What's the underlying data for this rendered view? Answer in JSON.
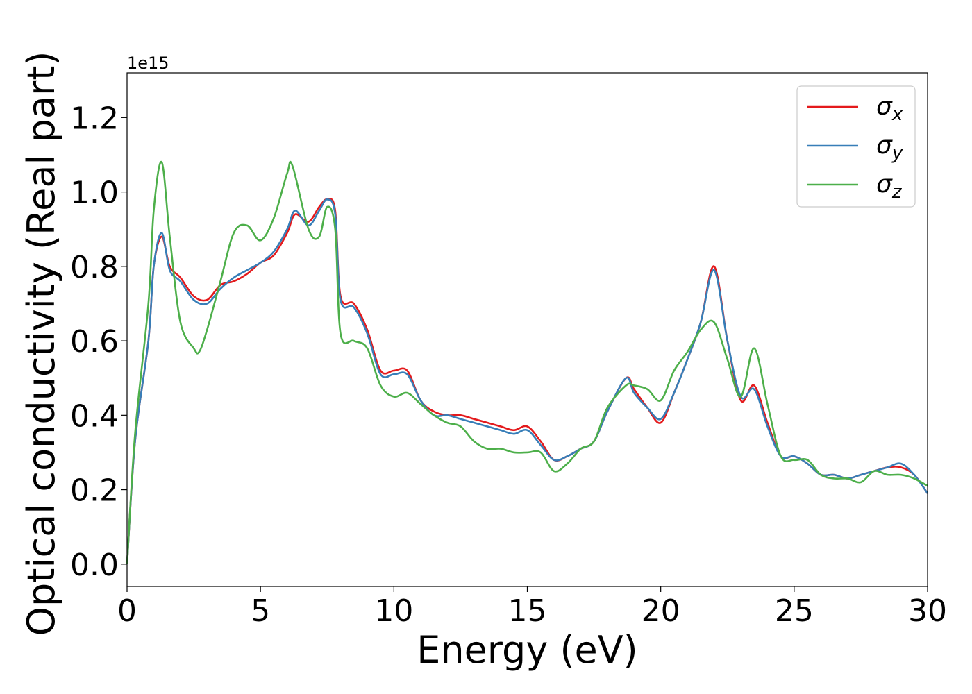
{
  "chart_data": {
    "type": "line",
    "title": "",
    "xlabel": "Energy (eV)",
    "ylabel": "Optical conductivity (Real part)",
    "y_offset_label": "1e15",
    "xlim": [
      0,
      30
    ],
    "ylim": [
      -0.06,
      1.32
    ],
    "x_ticks": [
      0,
      5,
      10,
      15,
      20,
      25,
      30
    ],
    "x_tick_labels": [
      "0",
      "5",
      "10",
      "15",
      "20",
      "25",
      "30"
    ],
    "y_ticks": [
      0.0,
      0.2,
      0.4,
      0.6,
      0.8,
      1.0,
      1.2
    ],
    "y_tick_labels": [
      "0.0",
      "0.2",
      "0.4",
      "0.6",
      "0.8",
      "1.0",
      "1.2"
    ],
    "grid": false,
    "legend_position": "top-right",
    "series": [
      {
        "name": "σx",
        "name_base": "σ",
        "name_sub": "x",
        "color": "#e41a1c",
        "points": [
          [
            0,
            0
          ],
          [
            0.3,
            0.33
          ],
          [
            0.8,
            0.6
          ],
          [
            1.0,
            0.8
          ],
          [
            1.3,
            0.88
          ],
          [
            1.6,
            0.8
          ],
          [
            2.0,
            0.77
          ],
          [
            2.5,
            0.72
          ],
          [
            3.0,
            0.71
          ],
          [
            3.5,
            0.75
          ],
          [
            4.0,
            0.76
          ],
          [
            4.5,
            0.78
          ],
          [
            5.0,
            0.81
          ],
          [
            5.5,
            0.83
          ],
          [
            6.0,
            0.89
          ],
          [
            6.3,
            0.94
          ],
          [
            6.8,
            0.92
          ],
          [
            7.2,
            0.96
          ],
          [
            7.5,
            0.98
          ],
          [
            7.8,
            0.95
          ],
          [
            8.0,
            0.72
          ],
          [
            8.5,
            0.7
          ],
          [
            9.0,
            0.63
          ],
          [
            9.5,
            0.52
          ],
          [
            10.0,
            0.52
          ],
          [
            10.5,
            0.52
          ],
          [
            11.0,
            0.44
          ],
          [
            11.5,
            0.41
          ],
          [
            12.0,
            0.4
          ],
          [
            12.5,
            0.4
          ],
          [
            13.0,
            0.39
          ],
          [
            13.5,
            0.38
          ],
          [
            14.0,
            0.37
          ],
          [
            14.5,
            0.36
          ],
          [
            15.0,
            0.37
          ],
          [
            15.5,
            0.33
          ],
          [
            16.0,
            0.28
          ],
          [
            16.5,
            0.29
          ],
          [
            17.0,
            0.31
          ],
          [
            17.5,
            0.33
          ],
          [
            18.0,
            0.41
          ],
          [
            18.7,
            0.5
          ],
          [
            19.0,
            0.47
          ],
          [
            19.5,
            0.42
          ],
          [
            20.0,
            0.38
          ],
          [
            20.5,
            0.46
          ],
          [
            21.0,
            0.55
          ],
          [
            21.5,
            0.65
          ],
          [
            22.0,
            0.8
          ],
          [
            22.5,
            0.6
          ],
          [
            23.0,
            0.44
          ],
          [
            23.5,
            0.48
          ],
          [
            24.0,
            0.38
          ],
          [
            24.5,
            0.29
          ],
          [
            25.0,
            0.29
          ],
          [
            25.5,
            0.27
          ],
          [
            26.0,
            0.24
          ],
          [
            26.5,
            0.24
          ],
          [
            27.0,
            0.23
          ],
          [
            27.5,
            0.24
          ],
          [
            28.0,
            0.25
          ],
          [
            28.5,
            0.26
          ],
          [
            29.0,
            0.26
          ],
          [
            29.5,
            0.24
          ],
          [
            30.0,
            0.19
          ]
        ]
      },
      {
        "name": "σy",
        "name_base": "σ",
        "name_sub": "y",
        "color": "#377eb8",
        "points": [
          [
            0,
            0
          ],
          [
            0.3,
            0.33
          ],
          [
            0.8,
            0.6
          ],
          [
            1.0,
            0.8
          ],
          [
            1.3,
            0.89
          ],
          [
            1.6,
            0.79
          ],
          [
            2.0,
            0.76
          ],
          [
            2.5,
            0.71
          ],
          [
            3.0,
            0.7
          ],
          [
            3.5,
            0.74
          ],
          [
            4.0,
            0.77
          ],
          [
            4.5,
            0.79
          ],
          [
            5.0,
            0.81
          ],
          [
            5.5,
            0.84
          ],
          [
            6.0,
            0.9
          ],
          [
            6.3,
            0.95
          ],
          [
            6.8,
            0.91
          ],
          [
            7.2,
            0.95
          ],
          [
            7.5,
            0.98
          ],
          [
            7.8,
            0.94
          ],
          [
            8.0,
            0.71
          ],
          [
            8.5,
            0.69
          ],
          [
            9.0,
            0.62
          ],
          [
            9.5,
            0.51
          ],
          [
            10.0,
            0.51
          ],
          [
            10.5,
            0.51
          ],
          [
            11.0,
            0.44
          ],
          [
            11.5,
            0.4
          ],
          [
            12.0,
            0.4
          ],
          [
            12.5,
            0.39
          ],
          [
            13.0,
            0.38
          ],
          [
            13.5,
            0.37
          ],
          [
            14.0,
            0.36
          ],
          [
            14.5,
            0.35
          ],
          [
            15.0,
            0.36
          ],
          [
            15.5,
            0.32
          ],
          [
            16.0,
            0.28
          ],
          [
            16.5,
            0.29
          ],
          [
            17.0,
            0.31
          ],
          [
            17.5,
            0.33
          ],
          [
            18.0,
            0.41
          ],
          [
            18.7,
            0.5
          ],
          [
            19.0,
            0.46
          ],
          [
            19.5,
            0.42
          ],
          [
            20.0,
            0.39
          ],
          [
            20.5,
            0.46
          ],
          [
            21.0,
            0.55
          ],
          [
            21.5,
            0.65
          ],
          [
            22.0,
            0.79
          ],
          [
            22.5,
            0.6
          ],
          [
            23.0,
            0.45
          ],
          [
            23.5,
            0.47
          ],
          [
            24.0,
            0.37
          ],
          [
            24.5,
            0.29
          ],
          [
            25.0,
            0.29
          ],
          [
            25.5,
            0.27
          ],
          [
            26.0,
            0.24
          ],
          [
            26.5,
            0.24
          ],
          [
            27.0,
            0.23
          ],
          [
            27.5,
            0.24
          ],
          [
            28.0,
            0.25
          ],
          [
            28.5,
            0.26
          ],
          [
            29.0,
            0.27
          ],
          [
            29.5,
            0.24
          ],
          [
            30.0,
            0.19
          ]
        ]
      },
      {
        "name": "σz",
        "name_base": "σ",
        "name_sub": "z",
        "color": "#4daf4a",
        "points": [
          [
            0,
            0
          ],
          [
            0.3,
            0.35
          ],
          [
            0.8,
            0.7
          ],
          [
            1.0,
            0.95
          ],
          [
            1.3,
            1.08
          ],
          [
            1.6,
            0.88
          ],
          [
            2.0,
            0.65
          ],
          [
            2.5,
            0.58
          ],
          [
            2.7,
            0.57
          ],
          [
            3.0,
            0.63
          ],
          [
            3.5,
            0.76
          ],
          [
            4.0,
            0.89
          ],
          [
            4.5,
            0.91
          ],
          [
            5.0,
            0.87
          ],
          [
            5.5,
            0.93
          ],
          [
            6.0,
            1.05
          ],
          [
            6.2,
            1.07
          ],
          [
            6.8,
            0.9
          ],
          [
            7.2,
            0.88
          ],
          [
            7.5,
            0.96
          ],
          [
            7.8,
            0.9
          ],
          [
            8.0,
            0.62
          ],
          [
            8.5,
            0.6
          ],
          [
            9.0,
            0.58
          ],
          [
            9.5,
            0.48
          ],
          [
            10.0,
            0.45
          ],
          [
            10.5,
            0.46
          ],
          [
            11.0,
            0.43
          ],
          [
            11.5,
            0.4
          ],
          [
            12.0,
            0.38
          ],
          [
            12.5,
            0.37
          ],
          [
            13.0,
            0.33
          ],
          [
            13.5,
            0.31
          ],
          [
            14.0,
            0.31
          ],
          [
            14.5,
            0.3
          ],
          [
            15.0,
            0.3
          ],
          [
            15.5,
            0.3
          ],
          [
            16.0,
            0.25
          ],
          [
            16.5,
            0.27
          ],
          [
            17.0,
            0.31
          ],
          [
            17.5,
            0.33
          ],
          [
            18.0,
            0.42
          ],
          [
            18.7,
            0.48
          ],
          [
            19.0,
            0.48
          ],
          [
            19.5,
            0.47
          ],
          [
            20.0,
            0.44
          ],
          [
            20.5,
            0.52
          ],
          [
            21.0,
            0.57
          ],
          [
            21.5,
            0.63
          ],
          [
            22.0,
            0.65
          ],
          [
            22.5,
            0.55
          ],
          [
            23.0,
            0.45
          ],
          [
            23.5,
            0.58
          ],
          [
            24.0,
            0.43
          ],
          [
            24.5,
            0.29
          ],
          [
            25.0,
            0.28
          ],
          [
            25.5,
            0.28
          ],
          [
            26.0,
            0.24
          ],
          [
            26.5,
            0.23
          ],
          [
            27.0,
            0.23
          ],
          [
            27.5,
            0.22
          ],
          [
            28.0,
            0.25
          ],
          [
            28.5,
            0.24
          ],
          [
            29.0,
            0.24
          ],
          [
            29.5,
            0.23
          ],
          [
            30.0,
            0.21
          ]
        ]
      }
    ]
  }
}
